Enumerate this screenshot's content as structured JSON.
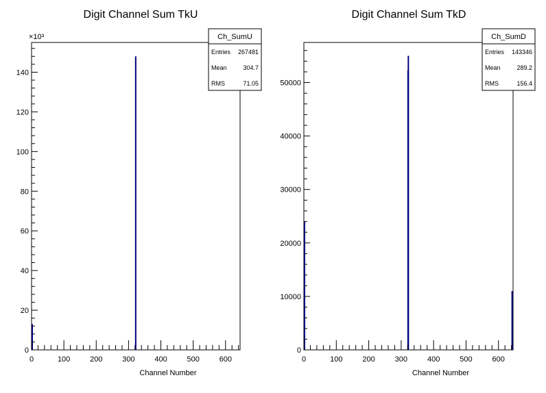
{
  "chart_data": [
    {
      "type": "bar",
      "title": "Digit Channel Sum TkU",
      "xlabel": "Channel Number",
      "ylabel": "",
      "xlim": [
        0,
        645
      ],
      "ylim": [
        0,
        155000
      ],
      "x_ticks": [
        "0",
        "100",
        "200",
        "300",
        "400",
        "500",
        "600"
      ],
      "y_ticks": [
        "0",
        "20",
        "40",
        "60",
        "80",
        "100",
        "120",
        "140"
      ],
      "y_exponent": "×10³",
      "series": [
        {
          "bins": [
            {
              "x": 0,
              "y": 13000
            },
            {
              "x": 320,
              "y": 148000
            }
          ]
        }
      ],
      "stats": {
        "name": "Ch_SumU",
        "entries": "267481",
        "mean": "304.7",
        "rms": "71.05"
      },
      "color": "#000080"
    },
    {
      "type": "bar",
      "title": "Digit Channel Sum TkD",
      "xlabel": "Channel Number",
      "ylabel": "",
      "xlim": [
        0,
        645
      ],
      "ylim": [
        0,
        57500
      ],
      "x_ticks": [
        "0",
        "100",
        "200",
        "300",
        "400",
        "500",
        "600"
      ],
      "y_ticks": [
        "0",
        "10000",
        "20000",
        "30000",
        "40000",
        "50000"
      ],
      "y_exponent": "",
      "series": [
        {
          "bins": [
            {
              "x": 0,
              "y": 24000
            },
            {
              "x": 319,
              "y": 52300
            },
            {
              "x": 320,
              "y": 55000
            },
            {
              "x": 640,
              "y": 11000
            }
          ]
        }
      ],
      "stats": {
        "name": "Ch_SumD",
        "entries": "143346",
        "mean": "289.2",
        "rms": "156.4"
      },
      "color": "#000080"
    }
  ]
}
